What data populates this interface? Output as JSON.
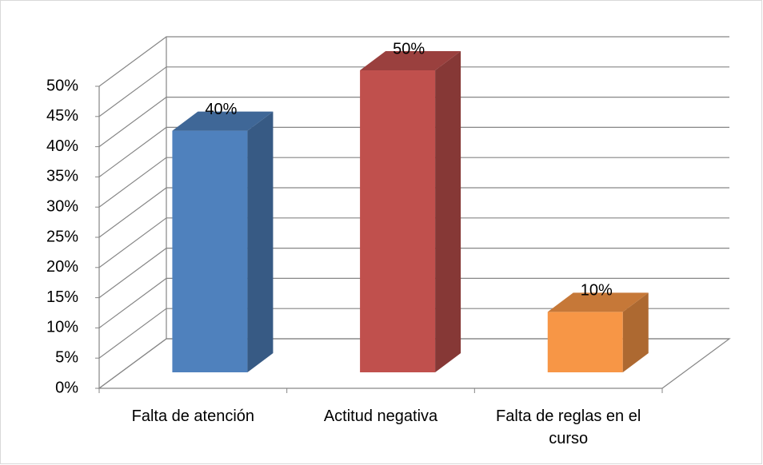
{
  "chart_data": {
    "type": "bar3d",
    "categories": [
      "Falta de atención",
      "Actitud negativa",
      "Falta de reglas en el curso"
    ],
    "values": [
      40,
      50,
      10
    ],
    "value_labels": [
      "40%",
      "50%",
      "10%"
    ],
    "colors": [
      "#4f81bd",
      "#c0504d",
      "#f79646"
    ],
    "ylim": [
      0,
      50
    ],
    "yticks": [
      {
        "value": 0,
        "label": "0%"
      },
      {
        "value": 5,
        "label": "5%"
      },
      {
        "value": 10,
        "label": "10%"
      },
      {
        "value": 15,
        "label": "15%"
      },
      {
        "value": 20,
        "label": "20%"
      },
      {
        "value": 25,
        "label": "25%"
      },
      {
        "value": 30,
        "label": "30%"
      },
      {
        "value": 35,
        "label": "35%"
      },
      {
        "value": 40,
        "label": "40%"
      },
      {
        "value": 45,
        "label": "45%"
      },
      {
        "value": 50,
        "label": "50%"
      }
    ],
    "grid": true
  }
}
